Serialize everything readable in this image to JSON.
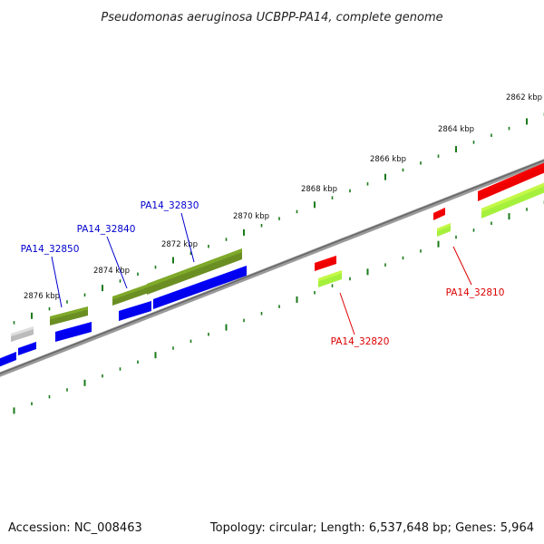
{
  "title": "Pseudomonas aeruginosa UCBPP-PA14, complete genome",
  "footer": {
    "accession": "Accession: NC_008463",
    "summary": "Topology: circular; Length: 6,537,648 bp; Genes: 5,964"
  },
  "colors": {
    "backbone": "#7a7a7a",
    "ticks": "#1a7a1a",
    "gene_blue": "#0000ee",
    "gene_olive": "#6b8e23",
    "gene_red": "#ee0000",
    "gene_lime": "#a5f03c",
    "gene_gray": "#bbbbbb",
    "label_blue": "#0000cc",
    "label_red": "#dd0000"
  },
  "ticks": [
    {
      "label": "2862 kbp"
    },
    {
      "label": "2864 kbp"
    },
    {
      "label": "2866 kbp"
    },
    {
      "label": "2868 kbp"
    },
    {
      "label": "2870 kbp"
    },
    {
      "label": "2872 kbp"
    },
    {
      "label": "2874 kbp"
    },
    {
      "label": "2876 kbp"
    }
  ],
  "gene_labels": [
    {
      "name": "PA14_32830",
      "strand": "reverse"
    },
    {
      "name": "PA14_32840",
      "strand": "reverse"
    },
    {
      "name": "PA14_32850",
      "strand": "reverse"
    },
    {
      "name": "PA14_32820",
      "strand": "forward"
    },
    {
      "name": "PA14_32810",
      "strand": "forward"
    }
  ]
}
